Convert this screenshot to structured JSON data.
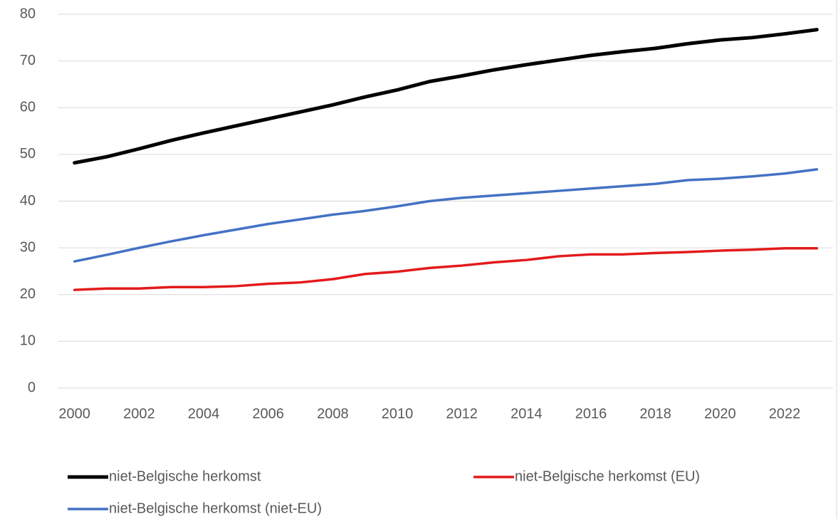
{
  "chart_data": {
    "type": "line",
    "x": [
      2000,
      2001,
      2002,
      2003,
      2004,
      2005,
      2006,
      2007,
      2008,
      2009,
      2010,
      2011,
      2012,
      2013,
      2014,
      2015,
      2016,
      2017,
      2018,
      2019,
      2020,
      2021,
      2022,
      2023
    ],
    "series": [
      {
        "name": "niet-Belgische herkomst",
        "color": "#000000",
        "values": [
          48.2,
          49.5,
          51.2,
          53,
          54.6,
          56.1,
          57.6,
          59.1,
          60.6,
          62.3,
          63.8,
          65.6,
          66.8,
          68.1,
          69.2,
          70.2,
          71.2,
          72,
          72.7,
          73.7,
          74.5,
          75,
          75.8,
          76.7
        ]
      },
      {
        "name": "niet-Belgische herkomst (EU)",
        "color": "#e31a1c",
        "values": [
          21,
          21.3,
          21.3,
          21.6,
          21.6,
          21.8,
          22.3,
          22.6,
          23.3,
          24.4,
          24.9,
          25.7,
          26.2,
          26.9,
          27.4,
          28.2,
          28.6,
          28.6,
          28.9,
          29.1,
          29.4,
          29.6,
          29.9,
          29.9
        ]
      },
      {
        "name": "niet-Belgische herkomst (niet-EU)",
        "color": "#4472c4",
        "values": [
          27.1,
          28.5,
          30,
          31.4,
          32.7,
          33.9,
          35.1,
          36.1,
          37.1,
          37.9,
          38.9,
          40,
          40.7,
          41.2,
          41.7,
          42.2,
          42.7,
          43.2,
          43.7,
          44.5,
          44.8,
          45.3,
          45.9,
          46.8
        ]
      }
    ],
    "xlim": [
      1999.5,
      2023.5
    ],
    "xticks": [
      2000,
      2002,
      2004,
      2006,
      2008,
      2010,
      2012,
      2014,
      2016,
      2018,
      2020,
      2022
    ],
    "ylim": [
      0,
      80
    ],
    "yticks": [
      0,
      10,
      20,
      30,
      40,
      50,
      60,
      70,
      80
    ],
    "grid": true
  }
}
